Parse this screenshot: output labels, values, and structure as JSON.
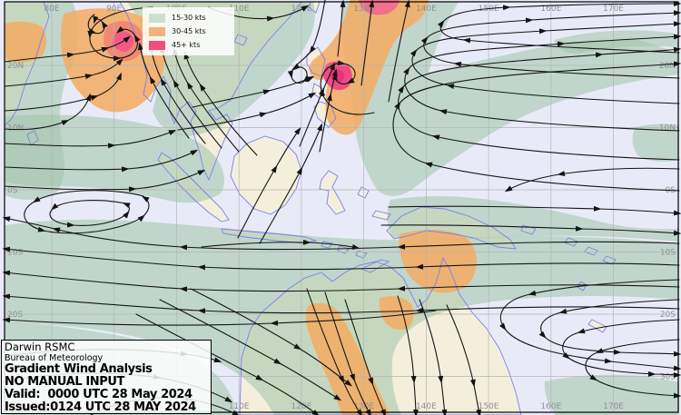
{
  "legend": {
    "items": [
      {
        "label": "15-30 kts",
        "color": "#cde0d0"
      },
      {
        "label": "30-45 kts",
        "color": "#f2b280"
      },
      {
        "label": "45+ kts",
        "color": "#f04e7e"
      }
    ]
  },
  "info_box": {
    "agency": "Darwin RSMC",
    "bureau": "Bureau of Meteorology",
    "product": "Gradient Wind Analysis",
    "note": "NO MANUAL INPUT",
    "valid": "Valid:  0000 UTC 28 May 2024",
    "issued": "Issued:0124 UTC 28 MAY 2024"
  },
  "grid": {
    "lon_labels": [
      "80E",
      "90E",
      "100E",
      "110E",
      "120E",
      "130E",
      "140E",
      "150E",
      "160E",
      "170E"
    ],
    "lat_labels": [
      "20N",
      "10N",
      "0S",
      "10S",
      "20S",
      "30S"
    ]
  },
  "colors": {
    "ocean": "#e9eaf8",
    "land": "#f4efdb",
    "coast": "#7d7df0",
    "gridline": "#b4b4b4",
    "streamline": "#141414",
    "frame": "#000000",
    "wind_green": "rgba(158,196,168,0.55)",
    "wind_orange": "rgba(243,172,100,0.88)",
    "wind_pink": "#f0508c"
  }
}
